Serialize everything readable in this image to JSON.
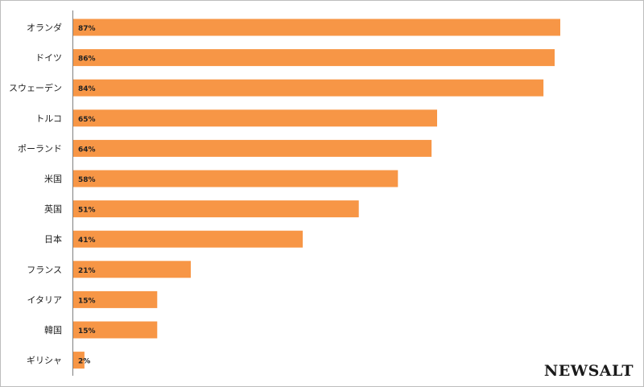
{
  "chart_data": {
    "type": "bar",
    "orientation": "horizontal",
    "categories": [
      "オランダ",
      "ドイツ",
      "スウェーデン",
      "トルコ",
      "ポーランド",
      "米国",
      "英国",
      "日本",
      "フランス",
      "イタリア",
      "韓国",
      "ギリシャ"
    ],
    "values": [
      87,
      86,
      84,
      65,
      64,
      58,
      51,
      41,
      21,
      15,
      15,
      2
    ],
    "data_labels": [
      "87%",
      "86%",
      "84%",
      "65%",
      "64%",
      "58%",
      "51%",
      "41%",
      "21%",
      "15%",
      "15%",
      "2%"
    ],
    "title": "",
    "xlabel": "",
    "ylabel": "",
    "xlim": [
      0,
      100
    ],
    "grid": false,
    "legend": "none",
    "bar_color": "#f79646"
  },
  "watermark": "NEWSALT"
}
